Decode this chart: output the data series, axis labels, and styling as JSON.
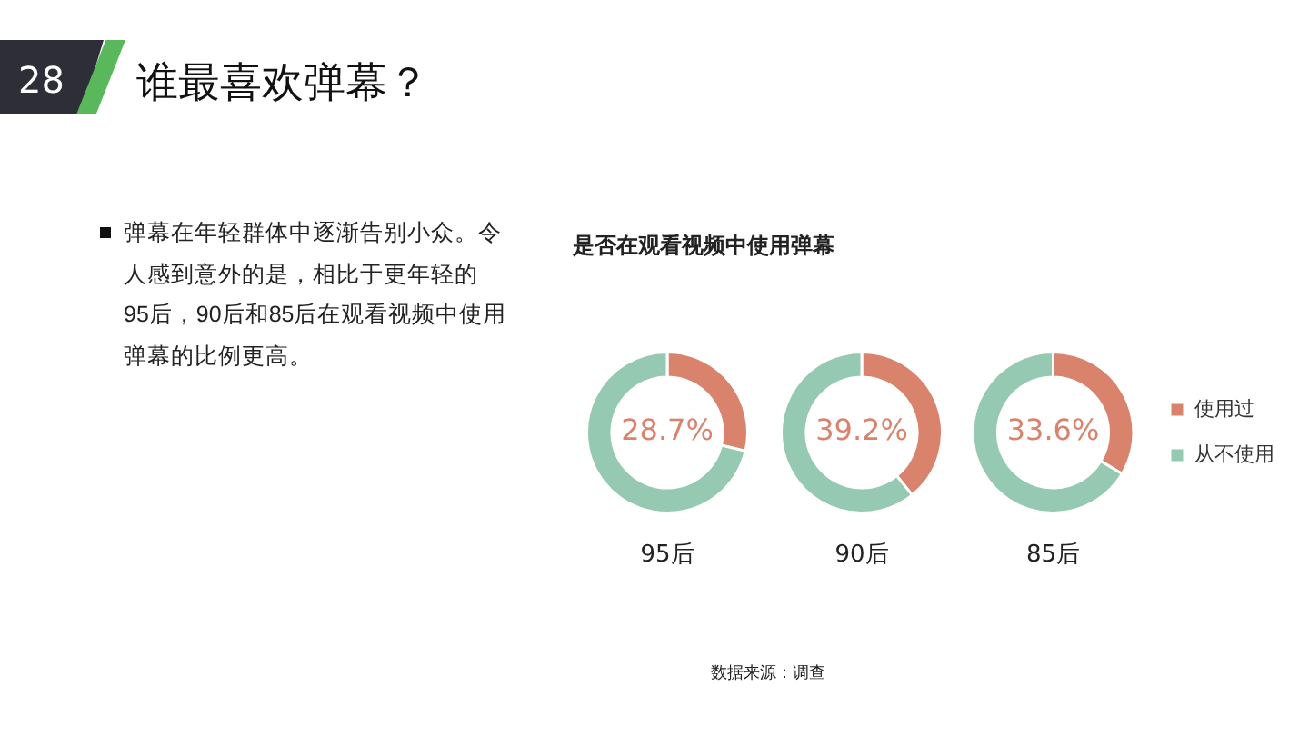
{
  "chart_data": [
    {
      "type": "other",
      "title": "谁最喜欢弹幕？",
      "annotations": [
        "28",
        "弹幕在年轻群体中逐渐告别小众。令人感到意外的是，相比于更年轻的95后，90后和85后在观看视频中使用弹幕的比例更高。",
        "数据来源：调查"
      ]
    },
    {
      "type": "donut",
      "title": "是否在观看视频中使用弹幕",
      "xlabel": "95后",
      "categories": [
        null,
        null
      ],
      "values": [
        28.7,
        71.3
      ],
      "colors": [
        "#d9836d",
        "#95c9b1"
      ],
      "value_labels": [
        "28.7%",
        null
      ]
    },
    {
      "type": "donut",
      "xlabel": "90后",
      "categories": [
        null,
        null
      ],
      "values": [
        39.2,
        60.8
      ],
      "colors": [
        "#d9836d",
        "#95c9b1"
      ],
      "value_labels": [
        "39.2%",
        null
      ]
    },
    {
      "type": "donut",
      "xlabel": "85后",
      "categories": [
        "使用过",
        "从不使用"
      ],
      "values": [
        33.6,
        66.4
      ],
      "colors": [
        "#d9836d",
        "#95c9b1"
      ],
      "value_labels": [
        "33.6%",
        null
      ],
      "legend": "right"
    }
  ]
}
